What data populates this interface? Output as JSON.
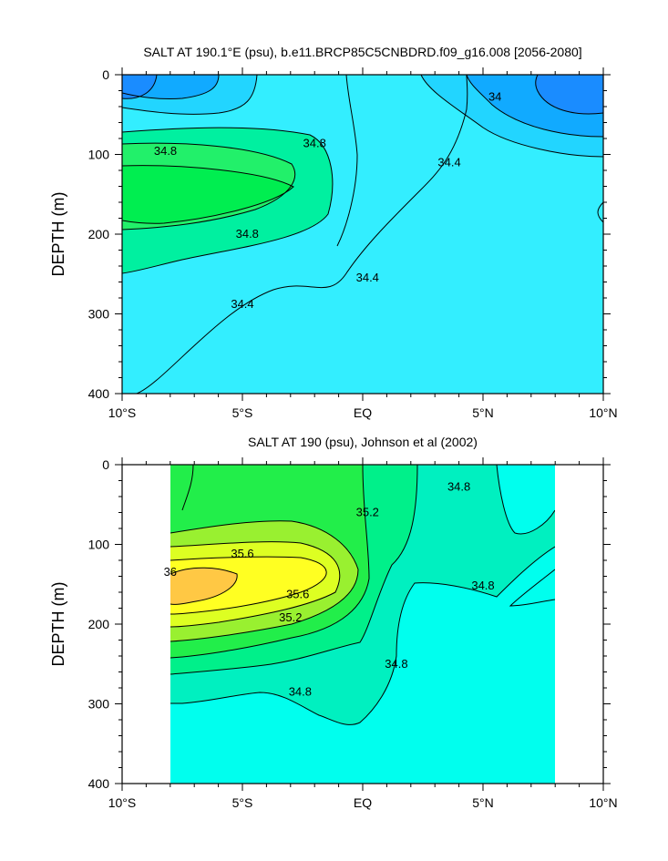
{
  "chart_data": [
    {
      "type": "contour",
      "title": "SALT AT 190.1°E (psu), b.e11.BRCP85C5CNBDRD.f09_g16.008 [2056-2080]",
      "ylabel": "DEPTH (m)",
      "x_tick_labels": [
        "10°S",
        "5°S",
        "EQ",
        "5°N",
        "10°N"
      ],
      "x_ticks": [
        -10,
        -5,
        0,
        5,
        10
      ],
      "y_tick_labels": [
        "0",
        "100",
        "200",
        "300",
        "400"
      ],
      "y_ticks": [
        0,
        100,
        200,
        300,
        400
      ],
      "xlim": [
        -10,
        10
      ],
      "ylim": [
        400,
        0
      ],
      "contour_labels": [
        {
          "text": "34.8",
          "lat": -8.2,
          "depth": 96
        },
        {
          "text": "34.8",
          "lat": -2.0,
          "depth": 86
        },
        {
          "text": "34.8",
          "lat": -4.8,
          "depth": 200
        },
        {
          "text": "34.4",
          "lat": -5.0,
          "depth": 288
        },
        {
          "text": "34.4",
          "lat": 0.2,
          "depth": 255
        },
        {
          "text": "34.4",
          "lat": 3.6,
          "depth": 110
        },
        {
          "text": "34",
          "lat": 5.5,
          "depth": 28
        }
      ],
      "colors": {
        "34.0": "#1a8cff",
        "34.2": "#11aaff",
        "34.4": "#22d5ff",
        "34.6": "#33eeff",
        "35.0": "#00f0a0",
        "35.2": "#22f06a",
        "35.4": "#00ee50"
      }
    },
    {
      "type": "contour",
      "title": "SALT AT 190 (psu), Johnson et al (2002)",
      "ylabel": "DEPTH (m)",
      "x_tick_labels": [
        "10°S",
        "5°S",
        "EQ",
        "5°N",
        "10°N"
      ],
      "x_ticks": [
        -10,
        -5,
        0,
        5,
        10
      ],
      "y_tick_labels": [
        "0",
        "100",
        "200",
        "300",
        "400"
      ],
      "y_ticks": [
        0,
        100,
        200,
        300,
        400
      ],
      "xlim": [
        -10,
        10
      ],
      "ylim": [
        400,
        0
      ],
      "data_xlim": [
        -8,
        8
      ],
      "contour_labels": [
        {
          "text": "35.6",
          "lat": -5.0,
          "depth": 112
        },
        {
          "text": "36",
          "lat": -8.0,
          "depth": 135
        },
        {
          "text": "35.6",
          "lat": -2.7,
          "depth": 163
        },
        {
          "text": "35.2",
          "lat": -3.0,
          "depth": 192
        },
        {
          "text": "35.2",
          "lat": 0.2,
          "depth": 60
        },
        {
          "text": "34.8",
          "lat": 4.0,
          "depth": 28
        },
        {
          "text": "34.8",
          "lat": 5.0,
          "depth": 152
        },
        {
          "text": "34.8",
          "lat": 1.4,
          "depth": 250
        },
        {
          "text": "34.8",
          "lat": -2.6,
          "depth": 285
        }
      ],
      "colors": {
        "34.4": "#22d5ff",
        "34.6": "#00ffee",
        "34.8": "#00f0c0",
        "35.0": "#00f08a",
        "35.2": "#22ee4a",
        "35.4": "#99f030",
        "35.6": "#ddff22",
        "35.8": "#ffff22",
        "36.0": "#ffc844"
      }
    }
  ]
}
